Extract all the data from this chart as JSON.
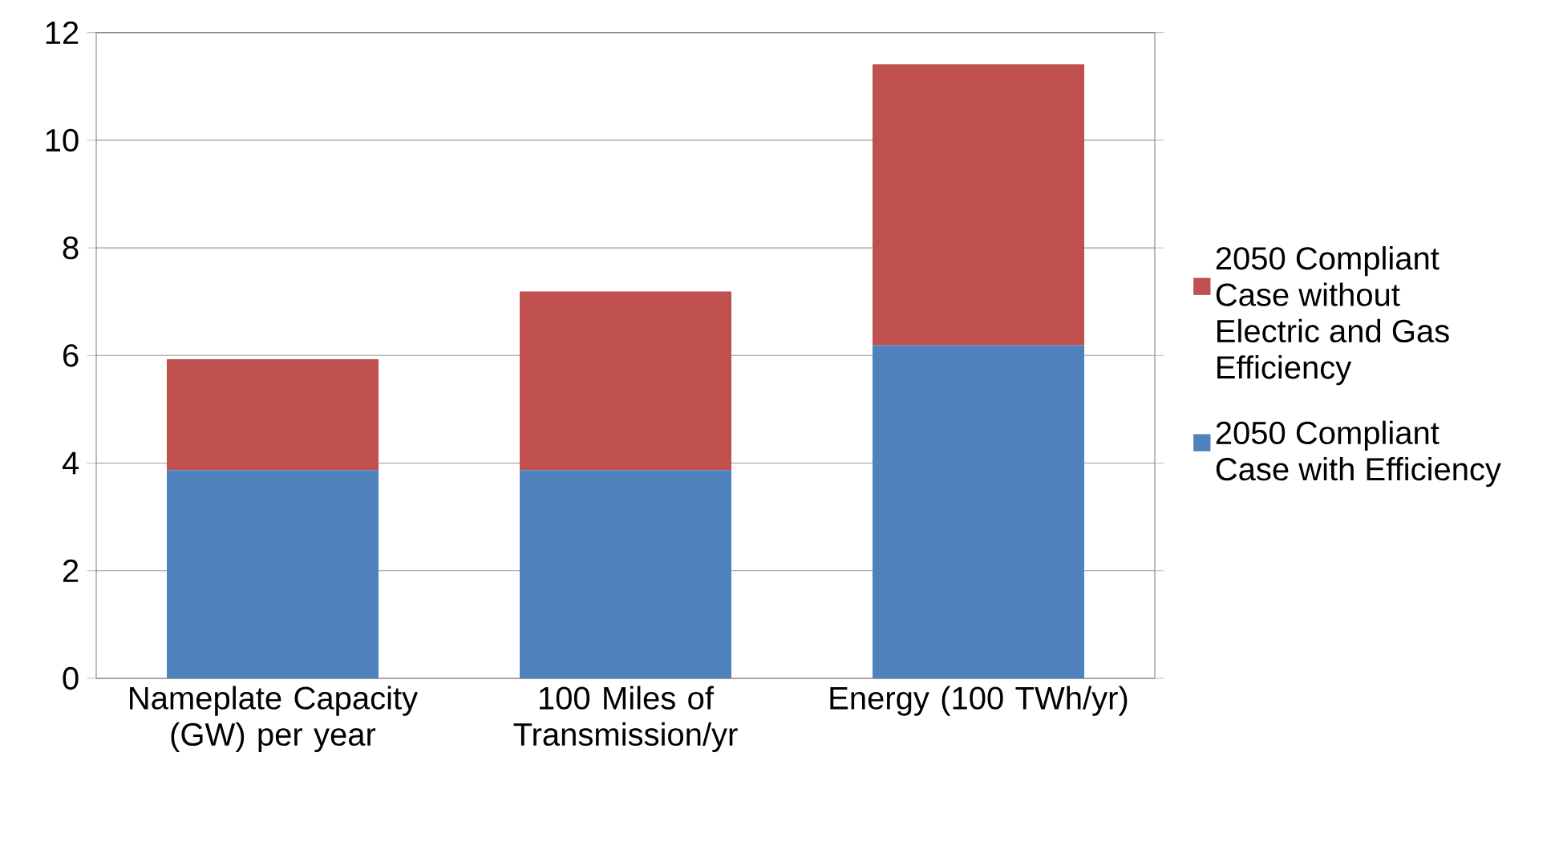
{
  "chart_data": {
    "type": "bar",
    "stacked": true,
    "categories": [
      "Nameplate Capacity (GW) per year",
      "100 Miles of Transmission/yr",
      "Energy (100 TWh/yr)"
    ],
    "series": [
      {
        "name": "2050 Compliant Case with Efficiency",
        "color": "#4f81bd",
        "values": [
          3.87,
          3.87,
          6.19
        ]
      },
      {
        "name": "2050 Compliant Case without Electric and Gas Efficiency",
        "color": "#c0504d",
        "values": [
          2.06,
          3.32,
          5.22
        ]
      }
    ],
    "ylim": [
      0,
      12
    ],
    "yticks": [
      0,
      2,
      4,
      6,
      8,
      10,
      12
    ],
    "grid": "y",
    "legend": "right"
  }
}
